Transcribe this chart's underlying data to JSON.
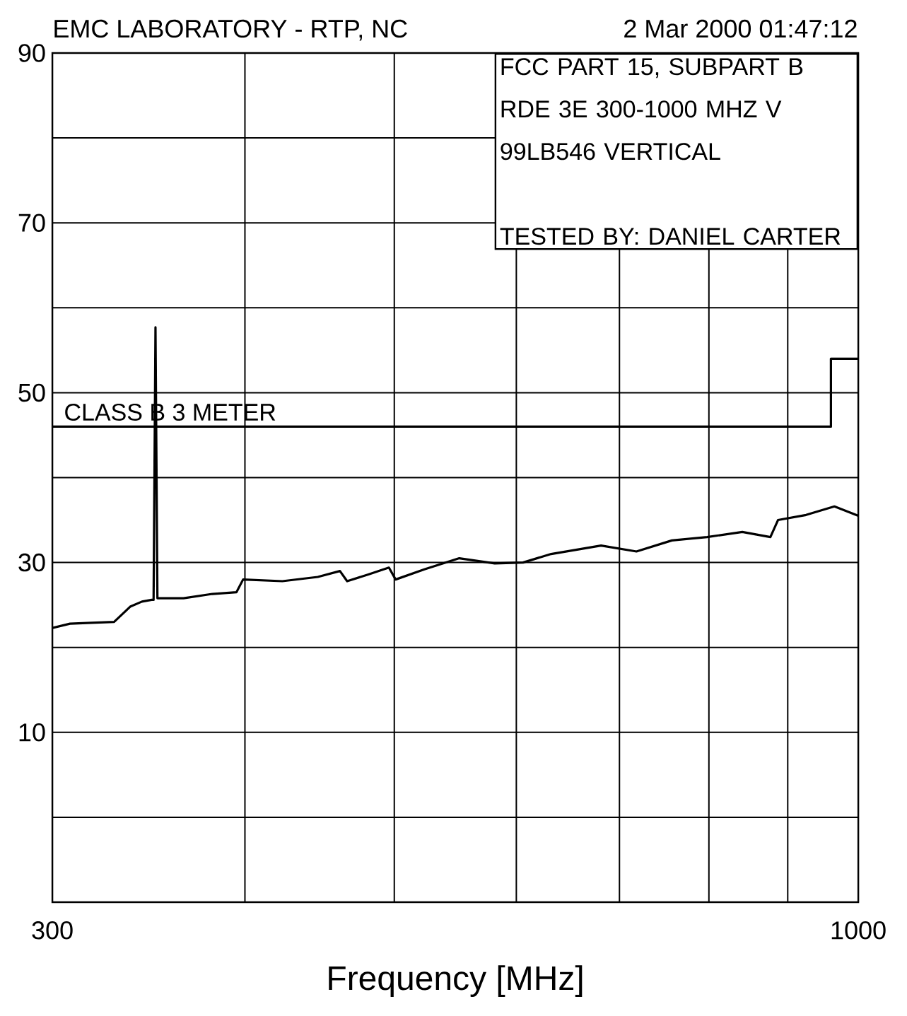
{
  "chart_data": {
    "type": "line",
    "title": "EMC LABORATORY - RTP, NC",
    "xlabel": "Frequency [MHz]",
    "annotations": [
      "2 Mar 2000   01:47:12",
      "FCC PART 15, SUBPART B",
      "RDE 3E 300-1000 MHZ V",
      "99LB546 VERTICAL",
      "TESTED BY: DANIEL CARTER"
    ],
    "log": "x",
    "grid": true,
    "xlim": [
      300,
      1000
    ],
    "xticks": [
      300,
      {
        "value": 400,
        "label": null
      },
      {
        "value": 500,
        "label": null
      },
      {
        "value": 600,
        "label": null
      },
      {
        "value": 700,
        "label": null
      },
      {
        "value": 800,
        "label": null
      },
      {
        "value": 900,
        "label": null
      },
      1000
    ],
    "ylim": [
      -10,
      90
    ],
    "yticks": [
      {
        "value": 0,
        "label": null
      },
      10,
      {
        "value": 20,
        "label": null
      },
      30,
      {
        "value": 40,
        "label": null
      },
      50,
      {
        "value": 60,
        "label": null
      },
      70,
      {
        "value": 80,
        "label": null
      },
      90
    ],
    "series": [
      {
        "color": "#000000",
        "x": [
          300,
          308,
          318,
          329,
          337,
          343,
          348,
          349,
          350,
          351,
          365,
          381,
          395,
          399,
          423,
          446,
          461,
          466,
          481,
          496,
          501,
          523,
          551,
          581,
          606,
          632,
          681,
          718,
          757,
          798,
          841,
          877,
          887,
          925,
          965,
          1000
        ],
        "values": [
          22.3,
          22.8,
          22.9,
          23.0,
          24.8,
          25.4,
          25.6,
          25.6,
          57.7,
          25.8,
          25.8,
          26.3,
          26.5,
          28.0,
          27.8,
          28.3,
          29.0,
          27.8,
          28.6,
          29.4,
          28.0,
          29.2,
          30.5,
          29.9,
          30.0,
          31.0,
          32.0,
          31.3,
          32.6,
          33.0,
          33.6,
          33.0,
          35.0,
          35.6,
          36.6,
          35.5
        ]
      },
      {
        "type": "step",
        "name": "CLASS B 3 METER",
        "color": "#000000",
        "x": [
          300,
          960,
          1000
        ],
        "values": [
          46,
          54,
          54
        ]
      }
    ]
  }
}
